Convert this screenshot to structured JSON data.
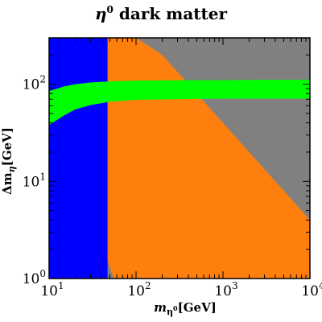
{
  "chart_data": {
    "type": "area",
    "title": {
      "symbol": "η",
      "sup": "0",
      "text": " dark matter"
    },
    "xlabel": {
      "main": "m",
      "sub": "η",
      "subsup": "0",
      "unit": "[GeV]"
    },
    "ylabel": {
      "main": "Δm",
      "sub": "η",
      "unit": "[GeV]"
    },
    "xscale": "log",
    "yscale": "log",
    "xlim": [
      10,
      10000
    ],
    "ylim": [
      1,
      300
    ],
    "x_ticks": [
      {
        "value": 10,
        "base": "10",
        "exp": "1"
      },
      {
        "value": 100,
        "base": "10",
        "exp": "2"
      },
      {
        "value": 1000,
        "base": "10",
        "exp": "3"
      },
      {
        "value": 10000,
        "base": "10",
        "exp": "4"
      }
    ],
    "y_ticks": [
      {
        "value": 1,
        "base": "10",
        "exp": "0"
      },
      {
        "value": 10,
        "base": "10",
        "exp": "1"
      },
      {
        "value": 100,
        "base": "10",
        "exp": "2"
      }
    ],
    "regions": [
      {
        "id": "gray-region",
        "color": "#808080",
        "points": [
          [
            10,
            1
          ],
          [
            10000,
            1
          ],
          [
            10000,
            300
          ],
          [
            10,
            300
          ]
        ]
      },
      {
        "id": "orange-region",
        "color": "#ff7f0e",
        "points": [
          [
            47,
            1.55
          ],
          [
            47,
            300
          ],
          [
            100,
            300
          ],
          [
            200,
            200
          ],
          [
            400,
            100
          ],
          [
            800,
            50
          ],
          [
            1600,
            25
          ],
          [
            3200,
            12.5
          ],
          [
            6400,
            6.25
          ],
          [
            10000,
            4
          ],
          [
            10000,
            1
          ],
          [
            55,
            1
          ]
        ]
      },
      {
        "id": "blue-region",
        "color": "#0000ff",
        "points": [
          [
            10,
            1
          ],
          [
            47,
            1
          ],
          [
            47,
            300
          ],
          [
            10,
            300
          ]
        ]
      },
      {
        "id": "green-band",
        "color": "#00ff00",
        "upper": [
          [
            10,
            85
          ],
          [
            15,
            95
          ],
          [
            20,
            100
          ],
          [
            30,
            104
          ],
          [
            50,
            107
          ],
          [
            100,
            109
          ],
          [
            300,
            110
          ],
          [
            1000,
            110
          ],
          [
            3000,
            111
          ],
          [
            10000,
            111
          ]
        ],
        "lower": [
          [
            10,
            38
          ],
          [
            15,
            48
          ],
          [
            20,
            55
          ],
          [
            30,
            61
          ],
          [
            50,
            66
          ],
          [
            100,
            69
          ],
          [
            300,
            70
          ],
          [
            1000,
            71
          ],
          [
            3000,
            71
          ],
          [
            10000,
            71
          ]
        ]
      }
    ],
    "grid": false,
    "legend": "none"
  }
}
